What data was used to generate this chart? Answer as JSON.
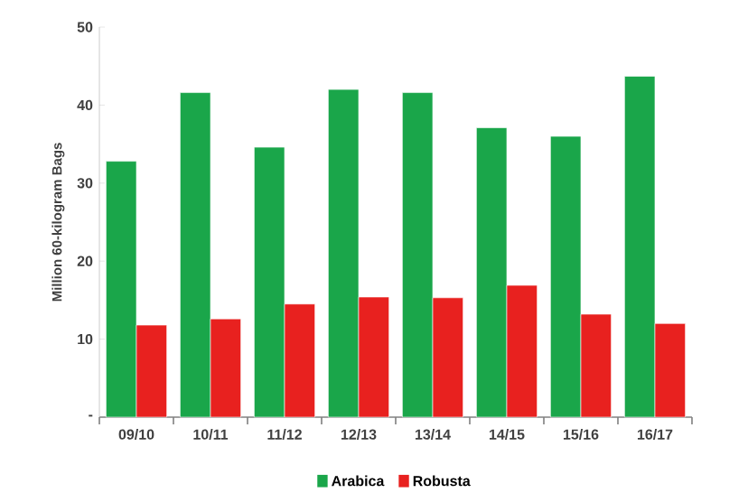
{
  "chart_data": {
    "type": "bar",
    "ylabel": "Million 60-kilogram Bags",
    "categories": [
      "09/10",
      "10/11",
      "11/12",
      "12/13",
      "13/14",
      "14/15",
      "15/16",
      "16/17"
    ],
    "series": [
      {
        "name": "Arabica",
        "color": "#1aa64a",
        "values": [
          32.8,
          41.6,
          34.6,
          42.0,
          41.6,
          37.1,
          36.0,
          43.7
        ]
      },
      {
        "name": "Robusta",
        "color": "#e8211f",
        "values": [
          11.8,
          12.6,
          14.5,
          15.4,
          15.3,
          16.9,
          13.2,
          12.0
        ]
      }
    ],
    "ylim": [
      0,
      50
    ],
    "yticks": [
      {
        "value": 0,
        "label": "-"
      },
      10,
      20,
      30,
      40,
      50
    ],
    "legend": "bottom"
  }
}
